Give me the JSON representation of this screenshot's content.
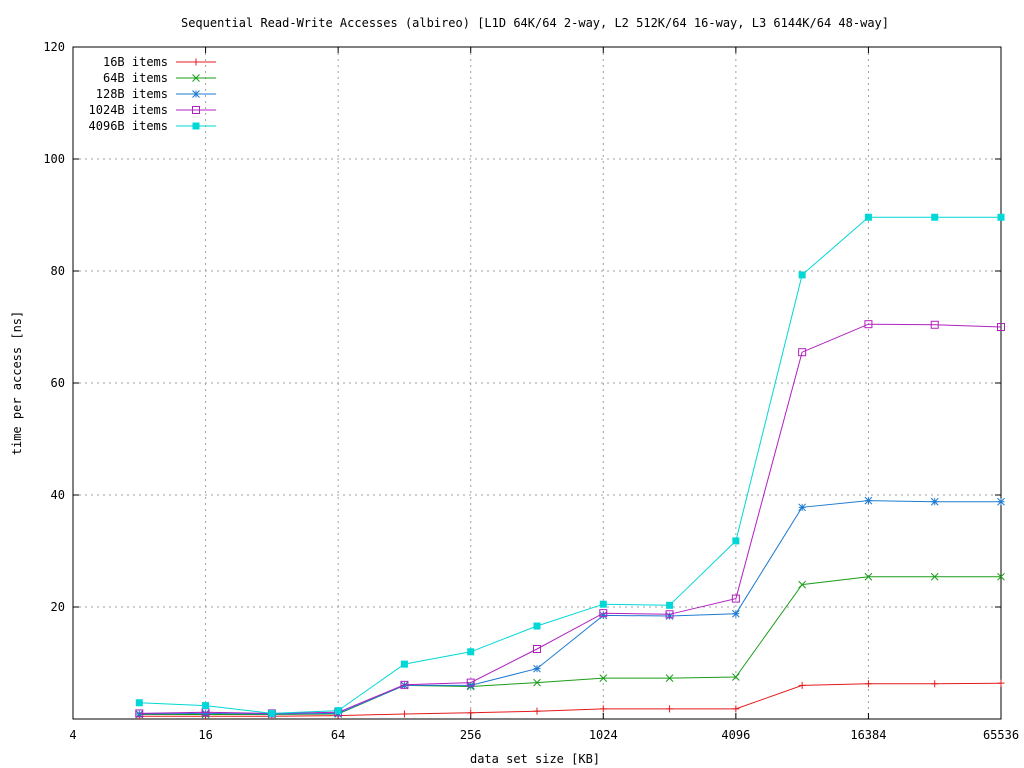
{
  "chart_data": {
    "type": "line",
    "title": "Sequential Read-Write Accesses (albireo) [L1D 64K/64 2-way, L2 512K/64 16-way, L3 6144K/64 48-way]",
    "xlabel": "data set size [KB]",
    "ylabel": "time per access [ns]",
    "x_scale": "log2",
    "xlim": [
      4,
      65536
    ],
    "ylim": [
      0,
      120
    ],
    "x_ticks": [
      4,
      16,
      64,
      256,
      1024,
      4096,
      16384,
      65536
    ],
    "x_tick_labels": [
      "4",
      "16",
      "64",
      "256",
      "1024",
      "4096",
      "16384",
      "65536"
    ],
    "y_ticks": [
      20,
      40,
      60,
      80,
      100,
      120
    ],
    "y_tick_labels": [
      "20",
      "40",
      "60",
      "80",
      "100",
      "120"
    ],
    "grid": true,
    "legend_position": "top-left",
    "x": [
      8,
      16,
      32,
      64,
      128,
      256,
      512,
      1024,
      2048,
      4096,
      8192,
      16384,
      32768,
      65536
    ],
    "series": [
      {
        "name": "16B items",
        "color": "#e41a1c",
        "marker": "plus",
        "values": [
          0.5,
          0.5,
          0.5,
          0.6,
          0.9,
          1.1,
          1.4,
          1.8,
          1.8,
          1.8,
          6.0,
          6.3,
          6.3,
          6.4
        ]
      },
      {
        "name": "64B items",
        "color": "#1a9e1a",
        "marker": "cross",
        "values": [
          0.8,
          0.8,
          0.8,
          0.9,
          6.0,
          5.8,
          6.5,
          7.3,
          7.3,
          7.5,
          24.0,
          25.4,
          25.4,
          25.4
        ]
      },
      {
        "name": "128B items",
        "color": "#1e7bd1",
        "marker": "star",
        "values": [
          0.9,
          1.0,
          0.9,
          1.0,
          6.0,
          6.0,
          9.0,
          18.5,
          18.4,
          18.8,
          37.8,
          39.0,
          38.8,
          38.8
        ]
      },
      {
        "name": "1024B items",
        "color": "#b020c0",
        "marker": "square-open",
        "values": [
          1.0,
          1.2,
          1.0,
          1.2,
          6.1,
          6.5,
          12.5,
          18.9,
          18.7,
          21.5,
          65.5,
          70.5,
          70.4,
          70.0
        ]
      },
      {
        "name": "4096B items",
        "color": "#00d7d7",
        "marker": "square-filled",
        "values": [
          2.9,
          2.4,
          1.0,
          1.5,
          9.8,
          12.0,
          16.6,
          20.5,
          20.3,
          31.8,
          79.3,
          89.6,
          89.6,
          89.6
        ]
      }
    ]
  }
}
